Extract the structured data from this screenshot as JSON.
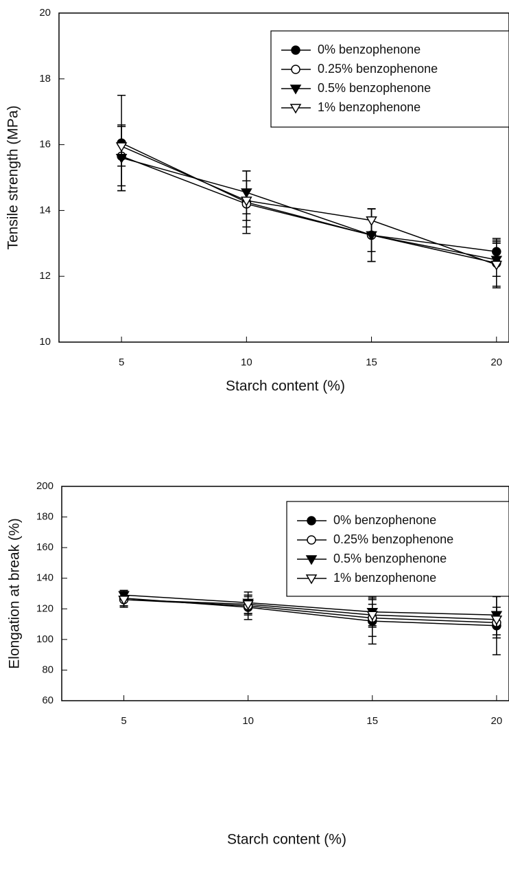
{
  "chart_data": [
    {
      "type": "line",
      "x_label": "Starch content (%)",
      "y_label": "Tensile strength (MPa)",
      "x": [
        5,
        10,
        15,
        20
      ],
      "xlim": [
        2.5,
        20.5
      ],
      "xticks": [
        5,
        10,
        15,
        20
      ],
      "ylim": [
        10,
        20
      ],
      "yticks": [
        10,
        12,
        14,
        16,
        18,
        20
      ],
      "legend": "upper right",
      "series": [
        {
          "name": "0% benzophenone",
          "marker": "circle",
          "filled": true,
          "values": [
            16.05,
            14.25,
            13.25,
            12.75
          ],
          "errors": [
            1.45,
            0.95,
            0.8,
            0.4
          ]
        },
        {
          "name": "0.25% benzophenone",
          "marker": "circle",
          "filled": false,
          "values": [
            15.65,
            14.2,
            13.25,
            12.4
          ],
          "errors": [
            0.9,
            0.7,
            0.8,
            0.7
          ]
        },
        {
          "name": "0.5% benzophenone",
          "marker": "triangle-down",
          "filled": true,
          "values": [
            15.6,
            14.55,
            13.25,
            12.5
          ],
          "errors": [
            1.0,
            0.65,
            0.5,
            0.5
          ]
        },
        {
          "name": "1% benzophenone",
          "marker": "triangle-down",
          "filled": false,
          "values": [
            15.95,
            14.3,
            13.7,
            12.35
          ],
          "errors": [
            0.6,
            0.6,
            0.35,
            0.7
          ]
        }
      ]
    },
    {
      "type": "line",
      "x_label": "Starch content (%)",
      "y_label": "Elongation at break (%)",
      "x": [
        5,
        10,
        15,
        20
      ],
      "xlim": [
        2.5,
        20.5
      ],
      "xticks": [
        5,
        10,
        15,
        20
      ],
      "ylim": [
        60,
        200
      ],
      "yticks": [
        60,
        80,
        100,
        120,
        140,
        160,
        180,
        200
      ],
      "legend": "upper right",
      "series": [
        {
          "name": "0% benzophenone",
          "marker": "circle",
          "filled": true,
          "values": [
            127,
            121,
            112,
            109
          ],
          "errors": [
            5,
            8,
            15,
            19
          ]
        },
        {
          "name": "0.25% benzophenone",
          "marker": "circle",
          "filled": false,
          "values": [
            126,
            122,
            114,
            111
          ],
          "errors": [
            4,
            6,
            12,
            10
          ]
        },
        {
          "name": "0.5% benzophenone",
          "marker": "triangle-down",
          "filled": true,
          "values": [
            129,
            124,
            118,
            116
          ],
          "errors": [
            3,
            7,
            10,
            13
          ]
        },
        {
          "name": "1% benzophenone",
          "marker": "triangle-down",
          "filled": false,
          "values": [
            126,
            123,
            116,
            113
          ],
          "errors": [
            5,
            6,
            7,
            5
          ]
        }
      ]
    }
  ]
}
